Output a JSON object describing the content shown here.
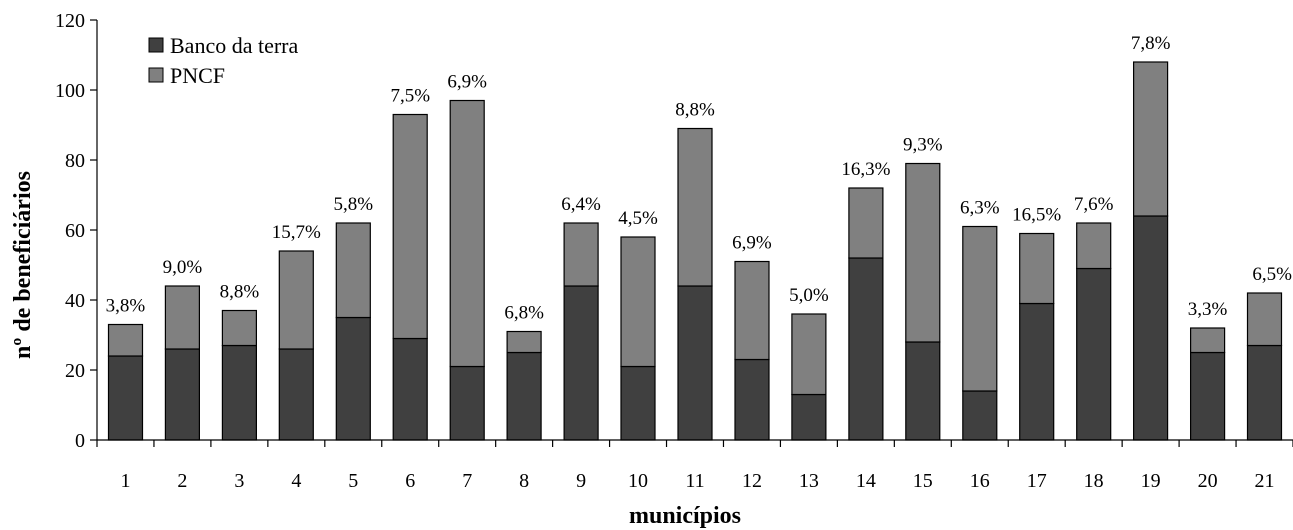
{
  "chart_data": {
    "type": "bar",
    "stacked": true,
    "xlabel": "municípios",
    "ylabel": "nº de beneficiários",
    "ylim": [
      0,
      120
    ],
    "yticks": [
      "0",
      "20",
      "40",
      "60",
      "80",
      "100",
      "120"
    ],
    "grid": false,
    "legend_position": "top-left",
    "categories": [
      "1",
      "2",
      "3",
      "4",
      "5",
      "6",
      "7",
      "8",
      "9",
      "10",
      "11",
      "12",
      "13",
      "14",
      "15",
      "16",
      "17",
      "18",
      "19",
      "20",
      "21"
    ],
    "series": [
      {
        "name": "Banco da terra",
        "color": "#404040",
        "values": [
          24,
          26,
          27,
          26,
          35,
          29,
          21,
          25,
          44,
          21,
          44,
          23,
          13,
          52,
          28,
          14,
          39,
          49,
          64,
          25,
          27
        ]
      },
      {
        "name": "PNCF",
        "color": "#808080",
        "values": [
          9,
          18,
          10,
          28,
          27,
          64,
          76,
          6,
          18,
          37,
          45,
          28,
          23,
          20,
          51,
          47,
          20,
          13,
          44,
          7,
          15
        ]
      }
    ],
    "data_labels": [
      "3,8%",
      "9,0%",
      "8,8%",
      "15,7%",
      "5,8%",
      "7,5%",
      "6,9%",
      "6,8%",
      "6,4%",
      "4,5%",
      "8,8%",
      "6,9%",
      "5,0%",
      "16,3%",
      "9,3%",
      "6,3%",
      "16,5%",
      "7,6%",
      "7,8%",
      "3,3%",
      "6,5%"
    ]
  }
}
